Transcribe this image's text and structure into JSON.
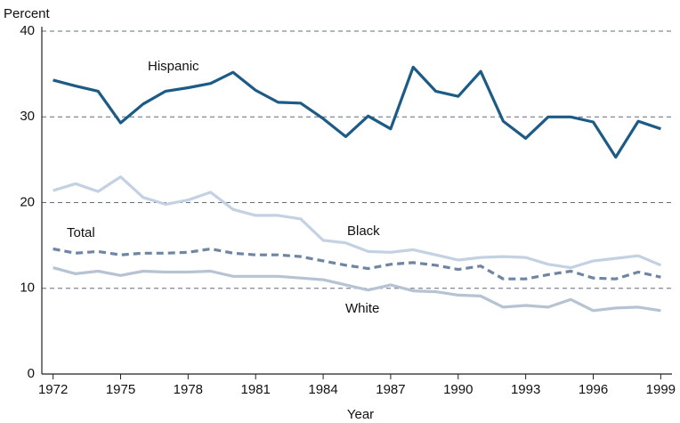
{
  "chart_data": {
    "type": "line",
    "y_label": "Percent",
    "x_label": "Year",
    "x": [
      1972,
      1973,
      1974,
      1975,
      1976,
      1977,
      1978,
      1979,
      1980,
      1981,
      1982,
      1983,
      1984,
      1985,
      1986,
      1987,
      1988,
      1989,
      1990,
      1991,
      1992,
      1993,
      1994,
      1995,
      1996,
      1997,
      1998,
      1999
    ],
    "series": [
      {
        "name": "Hispanic",
        "color": "#1d5b87",
        "line_style": "solid",
        "values": [
          34.3,
          33.6,
          33.0,
          29.3,
          31.5,
          33.0,
          33.4,
          33.9,
          35.2,
          33.1,
          31.7,
          31.6,
          29.8,
          27.7,
          30.1,
          28.6,
          35.8,
          33.0,
          32.4,
          35.3,
          29.5,
          27.5,
          30.0,
          30.0,
          29.4,
          25.3,
          29.5,
          28.6
        ]
      },
      {
        "name": "Black",
        "color": "#c3d1e2",
        "line_style": "solid",
        "values": [
          21.4,
          22.2,
          21.3,
          23.0,
          20.6,
          19.8,
          20.3,
          21.2,
          19.2,
          18.5,
          18.5,
          18.1,
          15.6,
          15.3,
          14.3,
          14.2,
          14.5,
          13.9,
          13.3,
          13.6,
          13.7,
          13.6,
          12.8,
          12.4,
          13.2,
          13.5,
          13.8,
          12.7
        ]
      },
      {
        "name": "Total",
        "color": "#6e86a3",
        "line_style": "dashed",
        "values": [
          14.6,
          14.1,
          14.3,
          13.9,
          14.1,
          14.1,
          14.2,
          14.6,
          14.1,
          13.9,
          13.9,
          13.7,
          13.2,
          12.7,
          12.3,
          12.8,
          13.0,
          12.7,
          12.2,
          12.6,
          11.1,
          11.1,
          11.6,
          12.0,
          11.2,
          11.1,
          11.9,
          11.3
        ]
      },
      {
        "name": "White",
        "color": "#b6c3d3",
        "line_style": "solid",
        "values": [
          12.4,
          11.7,
          12.0,
          11.5,
          12.0,
          11.9,
          11.9,
          12.0,
          11.4,
          11.4,
          11.4,
          11.2,
          11.0,
          10.4,
          9.8,
          10.4,
          9.7,
          9.6,
          9.2,
          9.1,
          7.8,
          8.0,
          7.8,
          8.7,
          7.4,
          7.7,
          7.8,
          7.4
        ]
      }
    ],
    "xlim": [
      1971.5,
      1999.5
    ],
    "xticks": [
      1972,
      1975,
      1978,
      1981,
      1984,
      1987,
      1990,
      1993,
      1996,
      1999
    ],
    "ylim": [
      0,
      40
    ],
    "yticks": [
      0,
      10,
      20,
      30,
      40
    ],
    "grid": true
  }
}
